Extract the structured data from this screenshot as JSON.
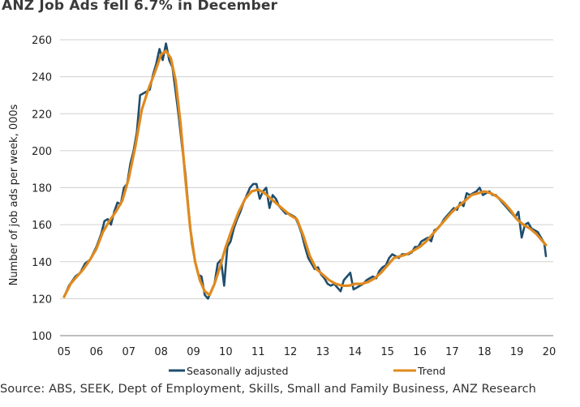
{
  "title": "ANZ Job Ads fell 6.7% in December",
  "source": "Source: ABS, SEEK, Dept of Employment, Skills, Small and Family Business, ANZ Research",
  "colors": {
    "seasonally_adjusted": "#1f4e6e",
    "trend": "#e08a1e",
    "grid": "#d0d0d0",
    "axis": "#7f7f7f"
  },
  "chart_data": {
    "type": "line",
    "title": "ANZ Job Ads fell 6.7% in December",
    "xlabel": "",
    "ylabel": "Number of job ads per week, 000s",
    "xlim": [
      2005.0,
      2020.0
    ],
    "ylim": [
      100,
      260
    ],
    "grid": true,
    "legend_position": "bottom",
    "y_ticks": [
      100,
      120,
      140,
      160,
      180,
      200,
      220,
      240,
      260
    ],
    "x_ticks": [
      {
        "x": 2005,
        "label": "05"
      },
      {
        "x": 2006,
        "label": "06"
      },
      {
        "x": 2007,
        "label": "07"
      },
      {
        "x": 2008,
        "label": "08"
      },
      {
        "x": 2009,
        "label": "09"
      },
      {
        "x": 2010,
        "label": "10"
      },
      {
        "x": 2011,
        "label": "11"
      },
      {
        "x": 2012,
        "label": "12"
      },
      {
        "x": 2013,
        "label": "13"
      },
      {
        "x": 2014,
        "label": "14"
      },
      {
        "x": 2015,
        "label": "15"
      },
      {
        "x": 2016,
        "label": "16"
      },
      {
        "x": 2017,
        "label": "17"
      },
      {
        "x": 2018,
        "label": "18"
      },
      {
        "x": 2019,
        "label": "19"
      },
      {
        "x": 2020,
        "label": "20"
      }
    ],
    "series": [
      {
        "name": "Seasonally adjusted",
        "points": [
          [
            2005.0,
            121
          ],
          [
            2005.15,
            127
          ],
          [
            2005.35,
            132
          ],
          [
            2005.5,
            134
          ],
          [
            2005.65,
            139
          ],
          [
            2005.8,
            141
          ],
          [
            2006.0,
            148
          ],
          [
            2006.15,
            155
          ],
          [
            2006.25,
            162
          ],
          [
            2006.35,
            163
          ],
          [
            2006.45,
            160
          ],
          [
            2006.55,
            167
          ],
          [
            2006.65,
            172
          ],
          [
            2006.75,
            171
          ],
          [
            2006.85,
            180
          ],
          [
            2006.95,
            182
          ],
          [
            2007.05,
            193
          ],
          [
            2007.15,
            200
          ],
          [
            2007.25,
            210
          ],
          [
            2007.35,
            230
          ],
          [
            2007.45,
            231
          ],
          [
            2007.55,
            232
          ],
          [
            2007.65,
            233
          ],
          [
            2007.75,
            241
          ],
          [
            2007.85,
            247
          ],
          [
            2007.95,
            255
          ],
          [
            2008.05,
            249
          ],
          [
            2008.15,
            258
          ],
          [
            2008.25,
            249
          ],
          [
            2008.35,
            245
          ],
          [
            2008.45,
            232
          ],
          [
            2008.55,
            218
          ],
          [
            2008.65,
            202
          ],
          [
            2008.75,
            188
          ],
          [
            2008.85,
            168
          ],
          [
            2008.95,
            150
          ],
          [
            2009.05,
            140
          ],
          [
            2009.15,
            133
          ],
          [
            2009.25,
            132
          ],
          [
            2009.35,
            122
          ],
          [
            2009.45,
            120
          ],
          [
            2009.55,
            124
          ],
          [
            2009.65,
            128
          ],
          [
            2009.75,
            139
          ],
          [
            2009.85,
            141
          ],
          [
            2009.95,
            127
          ],
          [
            2010.05,
            148
          ],
          [
            2010.15,
            151
          ],
          [
            2010.25,
            158
          ],
          [
            2010.35,
            163
          ],
          [
            2010.45,
            167
          ],
          [
            2010.55,
            172
          ],
          [
            2010.65,
            176
          ],
          [
            2010.75,
            180
          ],
          [
            2010.85,
            182
          ],
          [
            2010.95,
            182
          ],
          [
            2011.05,
            174
          ],
          [
            2011.15,
            178
          ],
          [
            2011.25,
            180
          ],
          [
            2011.35,
            169
          ],
          [
            2011.45,
            176
          ],
          [
            2011.55,
            174
          ],
          [
            2011.65,
            170
          ],
          [
            2011.75,
            168
          ],
          [
            2011.85,
            166
          ],
          [
            2011.95,
            166
          ],
          [
            2012.05,
            165
          ],
          [
            2012.15,
            164
          ],
          [
            2012.25,
            160
          ],
          [
            2012.35,
            155
          ],
          [
            2012.45,
            148
          ],
          [
            2012.55,
            142
          ],
          [
            2012.65,
            139
          ],
          [
            2012.75,
            136
          ],
          [
            2012.85,
            137
          ],
          [
            2012.95,
            133
          ],
          [
            2013.05,
            131
          ],
          [
            2013.15,
            128
          ],
          [
            2013.25,
            127
          ],
          [
            2013.35,
            128
          ],
          [
            2013.45,
            126
          ],
          [
            2013.55,
            124
          ],
          [
            2013.65,
            130
          ],
          [
            2013.75,
            132
          ],
          [
            2013.85,
            134
          ],
          [
            2013.95,
            125
          ],
          [
            2014.05,
            126
          ],
          [
            2014.15,
            127
          ],
          [
            2014.25,
            128
          ],
          [
            2014.35,
            130
          ],
          [
            2014.45,
            131
          ],
          [
            2014.55,
            132
          ],
          [
            2014.65,
            131
          ],
          [
            2014.75,
            135
          ],
          [
            2014.85,
            137
          ],
          [
            2014.95,
            138
          ],
          [
            2015.05,
            142
          ],
          [
            2015.15,
            144
          ],
          [
            2015.25,
            143
          ],
          [
            2015.35,
            142
          ],
          [
            2015.45,
            144
          ],
          [
            2015.55,
            144
          ],
          [
            2015.65,
            144
          ],
          [
            2015.75,
            145
          ],
          [
            2015.85,
            148
          ],
          [
            2015.95,
            148
          ],
          [
            2016.05,
            151
          ],
          [
            2016.15,
            152
          ],
          [
            2016.25,
            153
          ],
          [
            2016.35,
            151
          ],
          [
            2016.45,
            157
          ],
          [
            2016.55,
            158
          ],
          [
            2016.65,
            160
          ],
          [
            2016.75,
            163
          ],
          [
            2016.85,
            165
          ],
          [
            2016.95,
            167
          ],
          [
            2017.05,
            169
          ],
          [
            2017.15,
            168
          ],
          [
            2017.25,
            172
          ],
          [
            2017.35,
            170
          ],
          [
            2017.45,
            177
          ],
          [
            2017.55,
            176
          ],
          [
            2017.65,
            177
          ],
          [
            2017.75,
            178
          ],
          [
            2017.85,
            180
          ],
          [
            2017.95,
            176
          ],
          [
            2018.05,
            177
          ],
          [
            2018.15,
            178
          ],
          [
            2018.25,
            176
          ],
          [
            2018.35,
            176
          ],
          [
            2018.45,
            174
          ],
          [
            2018.55,
            172
          ],
          [
            2018.65,
            170
          ],
          [
            2018.75,
            168
          ],
          [
            2018.85,
            166
          ],
          [
            2018.95,
            164
          ],
          [
            2019.05,
            167
          ],
          [
            2019.15,
            153
          ],
          [
            2019.25,
            160
          ],
          [
            2019.35,
            161
          ],
          [
            2019.45,
            158
          ],
          [
            2019.55,
            157
          ],
          [
            2019.65,
            156
          ],
          [
            2019.75,
            153
          ],
          [
            2019.85,
            150
          ],
          [
            2019.9,
            143
          ]
        ]
      },
      {
        "name": "Trend",
        "points": [
          [
            2005.0,
            121
          ],
          [
            2005.2,
            128
          ],
          [
            2005.4,
            132
          ],
          [
            2005.6,
            136
          ],
          [
            2005.8,
            141
          ],
          [
            2006.0,
            147
          ],
          [
            2006.2,
            156
          ],
          [
            2006.4,
            162
          ],
          [
            2006.6,
            167
          ],
          [
            2006.8,
            173
          ],
          [
            2007.0,
            185
          ],
          [
            2007.2,
            202
          ],
          [
            2007.4,
            222
          ],
          [
            2007.6,
            233
          ],
          [
            2007.8,
            242
          ],
          [
            2008.0,
            252
          ],
          [
            2008.15,
            254
          ],
          [
            2008.3,
            250
          ],
          [
            2008.45,
            238
          ],
          [
            2008.6,
            215
          ],
          [
            2008.75,
            185
          ],
          [
            2008.9,
            158
          ],
          [
            2009.05,
            140
          ],
          [
            2009.2,
            130
          ],
          [
            2009.35,
            124
          ],
          [
            2009.5,
            122
          ],
          [
            2009.65,
            128
          ],
          [
            2009.8,
            136
          ],
          [
            2010.0,
            148
          ],
          [
            2010.2,
            158
          ],
          [
            2010.4,
            167
          ],
          [
            2010.6,
            174
          ],
          [
            2010.8,
            178
          ],
          [
            2011.0,
            179
          ],
          [
            2011.2,
            177
          ],
          [
            2011.4,
            174
          ],
          [
            2011.6,
            171
          ],
          [
            2011.8,
            168
          ],
          [
            2012.0,
            165
          ],
          [
            2012.2,
            163
          ],
          [
            2012.4,
            154
          ],
          [
            2012.6,
            143
          ],
          [
            2012.8,
            136
          ],
          [
            2013.0,
            133
          ],
          [
            2013.2,
            130
          ],
          [
            2013.4,
            128
          ],
          [
            2013.6,
            127
          ],
          [
            2013.8,
            127
          ],
          [
            2014.0,
            128
          ],
          [
            2014.2,
            128
          ],
          [
            2014.4,
            129
          ],
          [
            2014.6,
            131
          ],
          [
            2014.8,
            134
          ],
          [
            2015.0,
            138
          ],
          [
            2015.2,
            142
          ],
          [
            2015.4,
            143
          ],
          [
            2015.6,
            144
          ],
          [
            2015.8,
            146
          ],
          [
            2016.0,
            148
          ],
          [
            2016.2,
            151
          ],
          [
            2016.4,
            155
          ],
          [
            2016.6,
            159
          ],
          [
            2016.8,
            163
          ],
          [
            2017.0,
            167
          ],
          [
            2017.2,
            170
          ],
          [
            2017.4,
            173
          ],
          [
            2017.6,
            176
          ],
          [
            2017.8,
            177
          ],
          [
            2018.0,
            178
          ],
          [
            2018.2,
            177
          ],
          [
            2018.4,
            175
          ],
          [
            2018.6,
            172
          ],
          [
            2018.8,
            168
          ],
          [
            2019.0,
            163
          ],
          [
            2019.2,
            160
          ],
          [
            2019.4,
            158
          ],
          [
            2019.6,
            155
          ],
          [
            2019.8,
            151
          ],
          [
            2019.9,
            149
          ]
        ]
      }
    ]
  }
}
